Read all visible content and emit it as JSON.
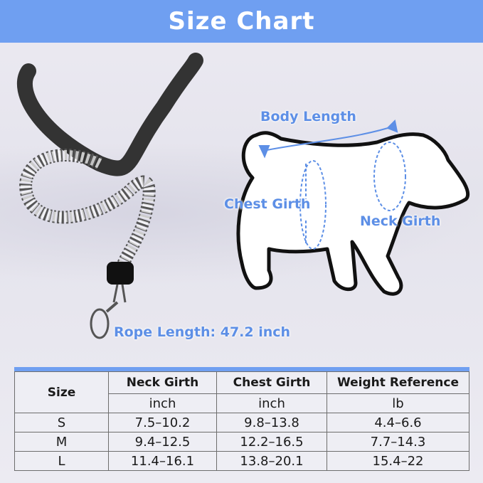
{
  "title": "Size Chart",
  "labels": {
    "body_length": "Body Length",
    "chest_girth": "Chest Girth",
    "neck_girth": "Neck Girth",
    "rope_length": "Rope Length: 47.2 inch"
  },
  "colors": {
    "accent": "#6f9ff1",
    "label": "#5d8fe6"
  },
  "table": {
    "size_header": "Size",
    "columns": [
      {
        "name": "Neck Girth",
        "unit": "inch"
      },
      {
        "name": "Chest Girth",
        "unit": "inch"
      },
      {
        "name": "Weight Reference",
        "unit": "lb"
      }
    ],
    "rows": [
      {
        "size": "S",
        "values": [
          "7.5–10.2",
          "9.8–13.8",
          "4.4–6.6"
        ]
      },
      {
        "size": "M",
        "values": [
          "9.4–12.5",
          "12.2–16.5",
          "7.7–14.3"
        ]
      },
      {
        "size": "L",
        "values": [
          "11.4–16.1",
          "13.8–20.1",
          "15.4–22"
        ]
      }
    ]
  }
}
